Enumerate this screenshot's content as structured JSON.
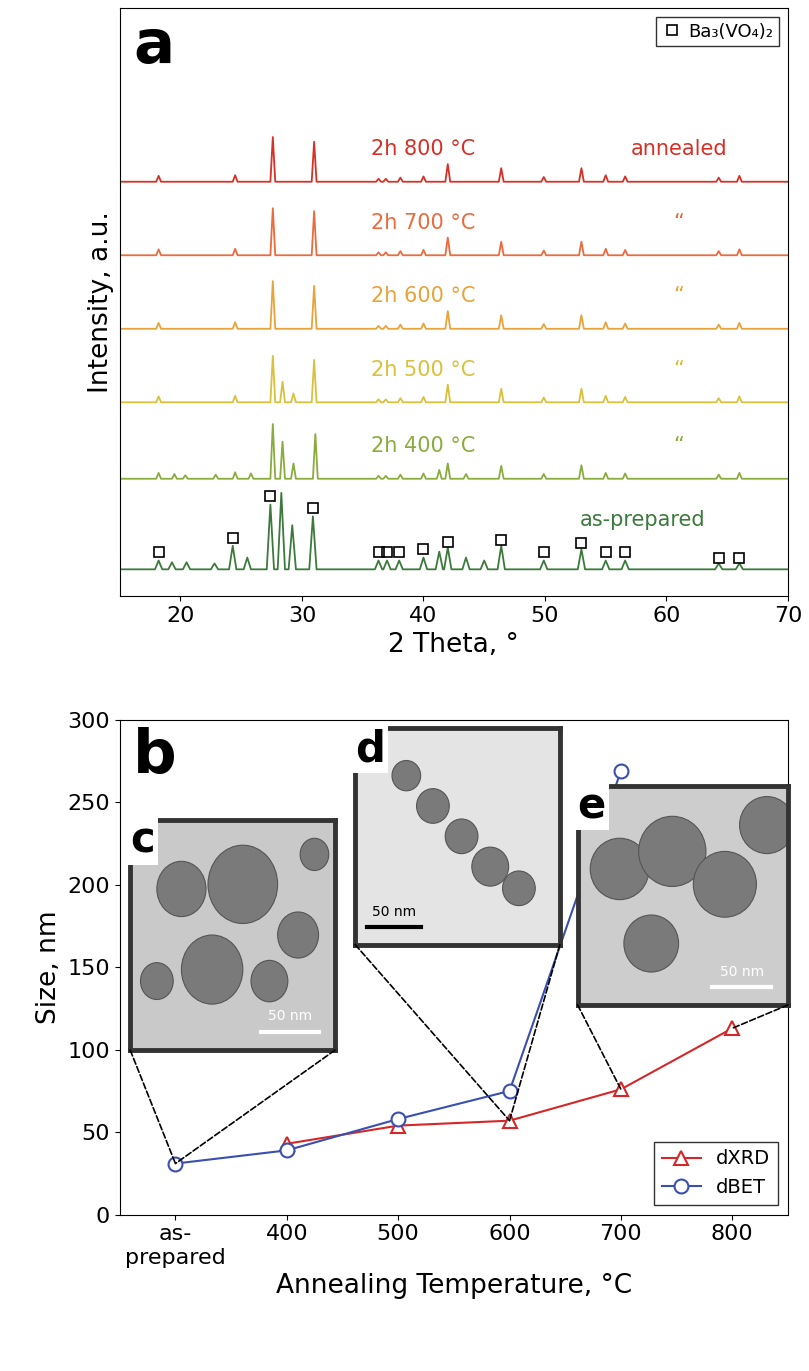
{
  "chart_data": [
    {
      "type": "line",
      "panel_label": "a",
      "xlabel": "2 Theta, °",
      "ylabel": "Intensity, a.u.",
      "xlim": [
        15,
        70
      ],
      "xticks": [
        20,
        30,
        40,
        50,
        60,
        70
      ],
      "ylim": [
        0,
        100
      ],
      "yticks": [],
      "tick_labels": "x",
      "legend": "upper right",
      "series": [
        {
          "color": "#d73027",
          "line_style": "solid",
          "x": [
            15,
            18.0,
            18.2,
            18.4,
            24.3,
            24.5,
            24.7,
            27.4,
            27.6,
            27.8,
            30.8,
            31.0,
            31.2,
            36.1,
            36.3,
            36.5,
            36.7,
            36.9,
            37.1,
            37.9,
            38.1,
            38.3,
            39.8,
            40.0,
            40.2,
            41.8,
            42.0,
            42.2,
            46.2,
            46.4,
            46.6,
            49.7,
            49.9,
            50.1,
            52.8,
            53.0,
            53.2,
            54.8,
            55.0,
            55.2,
            56.4,
            56.6,
            56.8,
            64.1,
            64.3,
            64.5,
            65.8,
            66.0,
            66.2,
            70
          ],
          "values": [
            70.5,
            70.5,
            71.5,
            70.5,
            70.5,
            71.6,
            70.5,
            70.5,
            78.1,
            70.5,
            70.5,
            77.3,
            70.5,
            70.5,
            71.0,
            70.5,
            70.5,
            71.0,
            70.5,
            70.5,
            71.2,
            70.5,
            70.5,
            71.4,
            70.5,
            70.5,
            73.5,
            70.5,
            70.5,
            72.8,
            70.5,
            70.5,
            71.3,
            70.5,
            70.5,
            72.8,
            70.5,
            70.5,
            71.6,
            70.5,
            70.5,
            71.4,
            70.5,
            70.5,
            71.2,
            70.5,
            70.5,
            71.5,
            70.5,
            70.5
          ]
        },
        {
          "color": "#ec6a3c",
          "line_style": "solid",
          "x": [
            15,
            18.0,
            18.2,
            18.4,
            24.3,
            24.5,
            24.7,
            27.4,
            27.6,
            27.8,
            30.8,
            31.0,
            31.2,
            36.1,
            36.3,
            36.5,
            36.7,
            36.9,
            37.1,
            37.9,
            38.1,
            38.3,
            39.8,
            40.0,
            40.2,
            41.8,
            42.0,
            42.2,
            46.2,
            46.4,
            46.6,
            49.7,
            49.9,
            50.1,
            52.8,
            53.0,
            53.2,
            54.8,
            55.0,
            55.2,
            56.4,
            56.6,
            56.8,
            64.1,
            64.3,
            64.5,
            65.8,
            66.0,
            66.2,
            70
          ],
          "values": [
            58,
            58,
            59.0,
            58,
            58,
            59.1,
            58,
            58,
            66.0,
            58,
            58,
            65.5,
            58,
            58,
            58.5,
            58,
            58,
            58.5,
            58,
            58,
            58.7,
            58,
            58,
            58.9,
            58,
            58,
            61.0,
            58,
            58,
            60.3,
            58,
            58,
            58.8,
            58,
            58,
            60.3,
            58,
            58,
            59.1,
            58,
            58,
            58.9,
            58,
            58,
            58.7,
            58,
            58,
            59.0,
            58,
            58
          ]
        },
        {
          "color": "#e8a33a",
          "line_style": "solid",
          "x": [
            15,
            18.0,
            18.2,
            18.4,
            24.3,
            24.5,
            24.7,
            27.4,
            27.6,
            27.8,
            30.8,
            31.0,
            31.2,
            36.1,
            36.3,
            36.5,
            36.7,
            36.9,
            37.1,
            37.9,
            38.1,
            38.3,
            39.8,
            40.0,
            40.2,
            41.8,
            42.0,
            42.2,
            46.2,
            46.4,
            46.6,
            49.7,
            49.9,
            50.1,
            52.8,
            53.0,
            53.2,
            54.8,
            55.0,
            55.2,
            56.4,
            56.6,
            56.8,
            64.1,
            64.3,
            64.5,
            65.8,
            66.0,
            66.2,
            70
          ],
          "values": [
            45.5,
            45.5,
            46.5,
            45.5,
            45.5,
            46.6,
            45.5,
            45.5,
            53.6,
            45.5,
            45.5,
            52.8,
            45.5,
            45.5,
            46.0,
            45.5,
            45.5,
            46.0,
            45.5,
            45.5,
            46.2,
            45.5,
            45.5,
            46.4,
            45.5,
            45.5,
            48.5,
            45.5,
            45.5,
            47.8,
            45.5,
            45.5,
            46.3,
            45.5,
            45.5,
            47.8,
            45.5,
            45.5,
            46.6,
            45.5,
            45.5,
            46.4,
            45.5,
            45.5,
            46.2,
            45.5,
            45.5,
            46.5,
            45.5,
            45.5
          ]
        },
        {
          "color": "#d9c13c",
          "line_style": "solid",
          "x": [
            15,
            18.0,
            18.2,
            18.4,
            24.3,
            24.5,
            24.7,
            27.4,
            27.6,
            27.8,
            28.2,
            28.4,
            28.6,
            29.1,
            29.3,
            29.5,
            30.8,
            31.0,
            31.2,
            36.1,
            36.3,
            36.5,
            36.7,
            36.9,
            37.1,
            37.9,
            38.1,
            38.3,
            39.8,
            40.0,
            40.2,
            41.8,
            42.0,
            42.2,
            46.2,
            46.4,
            46.6,
            49.7,
            49.9,
            50.1,
            52.8,
            53.0,
            53.2,
            54.8,
            55.0,
            55.2,
            56.4,
            56.6,
            56.8,
            64.1,
            64.3,
            64.5,
            65.8,
            66.0,
            66.2,
            70
          ],
          "values": [
            33,
            33,
            34.0,
            33,
            33,
            34.1,
            33,
            33,
            40.9,
            33,
            33,
            36.5,
            33,
            33,
            34.5,
            33,
            33,
            40.2,
            33,
            33,
            33.5,
            33,
            33,
            33.5,
            33,
            33,
            33.7,
            33,
            33,
            33.9,
            33,
            33,
            36.0,
            33,
            33,
            35.3,
            33,
            33,
            33.8,
            33,
            33,
            35.3,
            33,
            33,
            34.1,
            33,
            33,
            33.9,
            33,
            33,
            33.7,
            33,
            33,
            34.0,
            33,
            33
          ]
        },
        {
          "color": "#8aac3c",
          "line_style": "solid",
          "x": [
            15,
            18.0,
            18.2,
            18.4,
            19.3,
            19.5,
            19.7,
            20.2,
            20.4,
            20.6,
            22.7,
            22.9,
            23.1,
            24.3,
            24.5,
            24.7,
            25.6,
            25.8,
            26.0,
            27.4,
            27.6,
            27.8,
            28.2,
            28.4,
            28.6,
            29.1,
            29.3,
            29.5,
            30.9,
            31.1,
            31.3,
            36.1,
            36.3,
            36.5,
            36.7,
            36.9,
            37.1,
            37.9,
            38.1,
            38.3,
            39.8,
            40.0,
            40.2,
            41.1,
            41.3,
            41.5,
            41.8,
            42.0,
            42.2,
            43.3,
            43.5,
            43.7,
            46.2,
            46.4,
            46.6,
            49.7,
            49.9,
            50.1,
            52.8,
            53.0,
            53.2,
            54.8,
            55.0,
            55.2,
            56.4,
            56.6,
            56.8,
            64.1,
            64.3,
            64.5,
            65.8,
            66.0,
            66.2,
            70
          ],
          "values": [
            20,
            20,
            21.0,
            20,
            20,
            20.8,
            20,
            20,
            20.6,
            20,
            20,
            20.7,
            20,
            20,
            21.1,
            20,
            20,
            20.9,
            20,
            20,
            29.3,
            20,
            20,
            26.3,
            20,
            20,
            22.6,
            20,
            20,
            27.6,
            20,
            20,
            20.5,
            20,
            20,
            20.5,
            20,
            20,
            20.7,
            20,
            20,
            20.9,
            20,
            20,
            21.5,
            20,
            20,
            22.6,
            20,
            20,
            20.8,
            20,
            20,
            22.2,
            20,
            20,
            20.8,
            20,
            20,
            22.3,
            20,
            20,
            21.0,
            20,
            20,
            20.9,
            20,
            20,
            20.7,
            20,
            20,
            21.0,
            20,
            20
          ]
        },
        {
          "color": "#3c7a3c",
          "line_style": "solid",
          "x": [
            15,
            17.9,
            18.2,
            18.5,
            19.0,
            19.3,
            19.6,
            20.2,
            20.5,
            20.8,
            22.5,
            22.8,
            23.1,
            24.0,
            24.3,
            24.6,
            25.2,
            25.5,
            25.8,
            27.1,
            27.4,
            27.7,
            28.0,
            28.3,
            28.6,
            28.9,
            29.2,
            29.5,
            30.6,
            30.9,
            31.2,
            36.0,
            36.3,
            36.6,
            36.7,
            37.0,
            37.3,
            37.7,
            38.0,
            38.3,
            39.7,
            40.0,
            40.3,
            41.0,
            41.3,
            41.6,
            41.7,
            42.0,
            42.3,
            43.2,
            43.5,
            43.8,
            44.7,
            45.0,
            45.3,
            46.1,
            46.4,
            46.7,
            49.6,
            49.9,
            50.2,
            52.7,
            53.0,
            53.3,
            54.7,
            55.0,
            55.3,
            56.3,
            56.6,
            56.9,
            64.0,
            64.3,
            64.6,
            65.7,
            66.0,
            66.3,
            70
          ],
          "values": [
            4.6,
            4.6,
            6.1,
            4.6,
            4.6,
            5.8,
            4.6,
            4.6,
            5.8,
            4.6,
            4.6,
            5.6,
            4.6,
            4.6,
            8.6,
            4.6,
            4.6,
            6.6,
            4.6,
            4.6,
            15.6,
            4.6,
            4.6,
            17.6,
            4.6,
            4.6,
            12.1,
            4.6,
            4.6,
            13.6,
            4.6,
            4.6,
            6.1,
            4.6,
            4.6,
            6.1,
            4.6,
            4.6,
            6.1,
            4.6,
            4.6,
            6.6,
            4.6,
            4.6,
            7.6,
            4.6,
            4.6,
            8.3,
            4.6,
            4.6,
            6.6,
            4.6,
            4.6,
            6.1,
            4.6,
            4.6,
            8.6,
            4.6,
            4.6,
            6.1,
            4.6,
            4.6,
            8.0,
            4.6,
            4.6,
            6.1,
            4.6,
            4.6,
            6.1,
            4.6,
            4.6,
            5.6,
            4.6,
            4.6,
            5.6,
            4.6,
            4.6
          ]
        },
        {
          "name": "Ba₃(VO₄)₂",
          "type": "scatter",
          "marker": "square",
          "color": "#000000",
          "x": [
            18.2,
            24.3,
            27.4,
            30.9,
            36.3,
            37.0,
            38.0,
            40.0,
            42.0,
            46.4,
            49.9,
            53.0,
            55.0,
            56.6,
            64.3,
            66.0
          ],
          "values": [
            7.6,
            10.0,
            17.0,
            15.0,
            7.6,
            7.6,
            7.6,
            8.1,
            9.3,
            9.6,
            7.6,
            9.0,
            7.6,
            7.6,
            6.6,
            6.6
          ]
        }
      ],
      "annotations": [
        {
          "text": "2h 800 °C",
          "x": 40,
          "y": 76,
          "color": "#d73027"
        },
        {
          "text": "annealed",
          "x": 61,
          "y": 76,
          "color": "#d73027"
        },
        {
          "text": "2h 700 °C",
          "x": 40,
          "y": 63.5,
          "color": "#ec6a3c"
        },
        {
          "text": "“",
          "x": 61,
          "y": 63.5,
          "color": "#ec6a3c"
        },
        {
          "text": "2h 600 °C",
          "x": 40,
          "y": 51,
          "color": "#e8a33a"
        },
        {
          "text": "“",
          "x": 61,
          "y": 51,
          "color": "#e8a33a"
        },
        {
          "text": "2h 500 °C",
          "x": 40,
          "y": 38.5,
          "color": "#d9c13c"
        },
        {
          "text": "“",
          "x": 61,
          "y": 38.5,
          "color": "#d9c13c"
        },
        {
          "text": "2h 400 °C",
          "x": 40,
          "y": 25.5,
          "color": "#8aac3c"
        },
        {
          "text": "“",
          "x": 61,
          "y": 25.5,
          "color": "#8aac3c"
        },
        {
          "text": "as-prepared",
          "x": 58,
          "y": 13,
          "color": "#3c7a3c"
        }
      ]
    },
    {
      "type": "line",
      "panel_label": "b",
      "xlabel": "Annealing Temperature, °C",
      "ylabel": "Size, nm",
      "categories": [
        "as-\nprepared",
        "400",
        "500",
        "600",
        "700",
        "800"
      ],
      "ylim": [
        0,
        300
      ],
      "yticks": [
        0,
        50,
        100,
        150,
        200,
        250,
        300
      ],
      "legend": "lower right",
      "series": [
        {
          "name": "dXRD",
          "color": "#d62728",
          "marker": "triangle",
          "line_style": "solid",
          "values": [
            null,
            43,
            54,
            57,
            76,
            113
          ]
        },
        {
          "name": "dBET",
          "color": "#3a4fb0",
          "marker": "circle",
          "line_style": "solid",
          "values": [
            31,
            39,
            58,
            75,
            269,
            null
          ]
        }
      ],
      "insets": [
        {
          "label": "c",
          "scale_bar": "50 nm",
          "categories": [
            "as-\nprepared"
          ]
        },
        {
          "label": "d",
          "scale_bar": "50 nm",
          "categories": [
            "600"
          ]
        },
        {
          "label": "e",
          "scale_bar": "50 nm",
          "categories": [
            "700",
            "800"
          ]
        }
      ]
    }
  ]
}
